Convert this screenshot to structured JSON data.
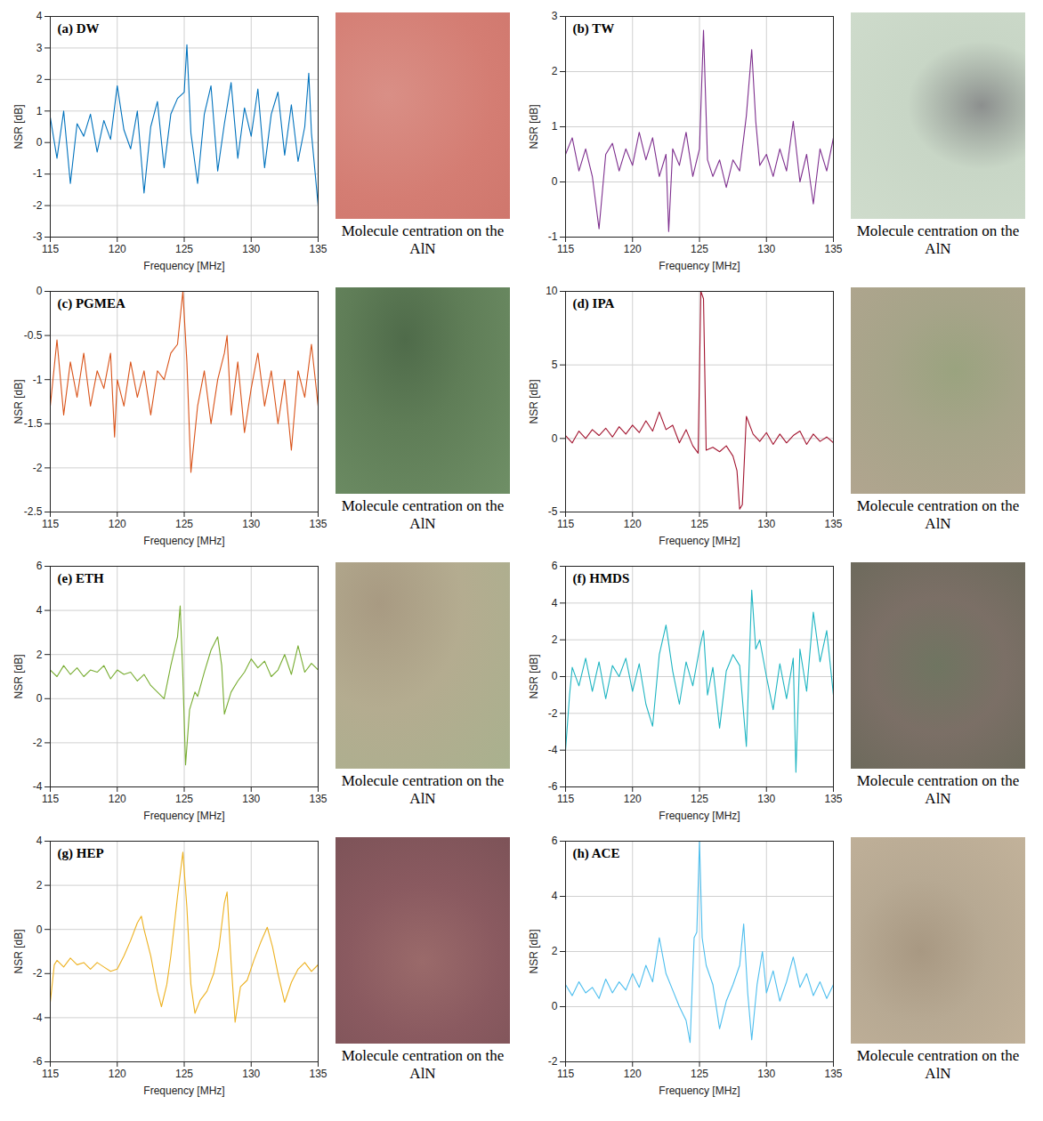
{
  "chart_data": [
    {
      "type": "line",
      "title": "(a) DW",
      "x_label": "Frequency [MHz]",
      "y_label": "NSR [dB]",
      "caption": "Molecule centration on the AlN",
      "x": [
        115,
        115.5,
        116,
        116.5,
        117,
        117.5,
        118,
        118.5,
        119,
        119.5,
        120,
        120.5,
        121,
        121.5,
        122,
        122.5,
        123,
        123.5,
        124,
        124.5,
        125,
        125.2,
        125.5,
        126,
        126.5,
        127,
        127.5,
        128,
        128.5,
        129,
        129.5,
        130,
        130.5,
        131,
        131.5,
        132,
        132.5,
        133,
        133.5,
        134,
        134.3,
        134.5,
        135
      ],
      "values": [
        0.8,
        -0.5,
        1.0,
        -1.3,
        0.6,
        0.2,
        0.9,
        -0.3,
        0.7,
        0.1,
        1.8,
        0.4,
        -0.2,
        1.0,
        -1.6,
        0.5,
        1.3,
        -0.8,
        0.9,
        1.4,
        1.6,
        3.1,
        0.3,
        -1.3,
        0.9,
        1.8,
        -0.9,
        0.6,
        1.9,
        -0.5,
        1.1,
        0.2,
        1.7,
        -0.8,
        0.9,
        1.6,
        -0.4,
        1.2,
        -0.6,
        0.5,
        2.2,
        0.3,
        -2.0
      ],
      "color": "#0072BD",
      "xlim": [
        115,
        135
      ],
      "xticks": [
        115,
        120,
        125,
        130,
        135
      ],
      "ylim": [
        -3,
        4
      ],
      "yticks": [
        -3,
        -2,
        -1,
        0,
        1,
        2,
        3,
        4
      ],
      "grid": true
    },
    {
      "type": "line",
      "title": "(b) TW",
      "x_label": "Frequency [MHz]",
      "y_label": "NSR [dB]",
      "caption": "Molecule centration on the AlN",
      "x": [
        115,
        115.5,
        116,
        116.5,
        117,
        117.5,
        118,
        118.5,
        119,
        119.5,
        120,
        120.5,
        121,
        121.5,
        122,
        122.5,
        122.7,
        123,
        123.5,
        124,
        124.5,
        125,
        125.3,
        125.6,
        126,
        126.5,
        127,
        127.5,
        128,
        128.5,
        128.9,
        129.2,
        129.5,
        130,
        130.5,
        131,
        131.5,
        132,
        132.5,
        133,
        133.5,
        134,
        134.5,
        135
      ],
      "values": [
        0.5,
        0.8,
        0.2,
        0.6,
        0.1,
        -0.85,
        0.5,
        0.7,
        0.2,
        0.6,
        0.3,
        0.9,
        0.4,
        0.8,
        0.1,
        0.5,
        -0.9,
        0.6,
        0.3,
        0.9,
        0.1,
        0.6,
        2.75,
        0.4,
        0.1,
        0.4,
        -0.1,
        0.4,
        0.2,
        1.2,
        2.4,
        1.1,
        0.3,
        0.5,
        0.1,
        0.6,
        0.2,
        1.1,
        0.0,
        0.5,
        -0.4,
        0.6,
        0.2,
        0.8
      ],
      "color": "#7E2F8E",
      "xlim": [
        115,
        135
      ],
      "xticks": [
        115,
        120,
        125,
        130,
        135
      ],
      "ylim": [
        -1,
        3
      ],
      "yticks": [
        -1,
        0,
        1,
        2,
        3
      ],
      "grid": true
    },
    {
      "type": "line",
      "title": "(c) PGMEA",
      "x_label": "Frequency [MHz]",
      "y_label": "NSR [dB]",
      "caption": "Molecule centration on the AlN",
      "x": [
        115,
        115.5,
        116,
        116.5,
        117,
        117.5,
        118,
        118.5,
        119,
        119.5,
        119.8,
        120,
        120.5,
        121,
        121.5,
        122,
        122.5,
        123,
        123.5,
        124,
        124.5,
        124.9,
        125.2,
        125.5,
        126,
        126.5,
        127,
        127.5,
        128,
        128.2,
        128.5,
        129,
        129.5,
        130,
        130.5,
        131,
        131.5,
        132,
        132.5,
        133,
        133.5,
        134,
        134.5,
        135
      ],
      "values": [
        -1.3,
        -0.55,
        -1.4,
        -0.8,
        -1.2,
        -0.7,
        -1.3,
        -0.9,
        -1.1,
        -0.7,
        -1.65,
        -1.0,
        -1.3,
        -0.8,
        -1.2,
        -0.9,
        -1.4,
        -0.9,
        -1.0,
        -0.7,
        -0.6,
        0.0,
        -0.8,
        -2.05,
        -1.3,
        -0.9,
        -1.5,
        -1.0,
        -0.7,
        -0.5,
        -1.4,
        -0.8,
        -1.6,
        -1.1,
        -0.7,
        -1.3,
        -0.9,
        -1.5,
        -1.0,
        -1.8,
        -0.9,
        -1.2,
        -0.6,
        -1.3
      ],
      "color": "#D95319",
      "xlim": [
        115,
        135
      ],
      "xticks": [
        115,
        120,
        125,
        130,
        135
      ],
      "ylim": [
        -2.5,
        0
      ],
      "yticks": [
        -2.5,
        -2,
        -1.5,
        -1,
        -0.5,
        0
      ],
      "grid": true
    },
    {
      "type": "line",
      "title": "(d) IPA",
      "x_label": "Frequency [MHz]",
      "y_label": "NSR [dB]",
      "caption": "Molecule centration on the AlN",
      "x": [
        115,
        115.5,
        116,
        116.5,
        117,
        117.5,
        118,
        118.5,
        119,
        119.5,
        120,
        120.5,
        121,
        121.5,
        122,
        122.5,
        123,
        123.5,
        124,
        124.5,
        124.9,
        125.1,
        125.3,
        125.5,
        126,
        126.5,
        127,
        127.5,
        127.8,
        128,
        128.2,
        128.5,
        129,
        129.5,
        130,
        130.5,
        131,
        131.5,
        132,
        132.5,
        133,
        133.5,
        134,
        134.5,
        135
      ],
      "values": [
        0.2,
        -0.3,
        0.5,
        0.0,
        0.6,
        0.2,
        0.7,
        0.1,
        0.8,
        0.3,
        0.9,
        0.4,
        1.2,
        0.5,
        1.8,
        0.6,
        0.9,
        -0.3,
        0.6,
        -0.5,
        -1.0,
        10.0,
        9.5,
        -0.8,
        -0.6,
        -0.9,
        -0.5,
        -1.2,
        -2.2,
        -4.8,
        -4.5,
        1.5,
        0.3,
        -0.2,
        0.4,
        -0.4,
        0.3,
        -0.3,
        0.2,
        0.5,
        -0.4,
        0.3,
        -0.2,
        0.1,
        -0.3
      ],
      "color": "#A2142F",
      "xlim": [
        115,
        135
      ],
      "xticks": [
        115,
        120,
        125,
        130,
        135
      ],
      "ylim": [
        -5,
        10
      ],
      "yticks": [
        -5,
        0,
        5,
        10
      ],
      "grid": true
    },
    {
      "type": "line",
      "title": "(e) ETH",
      "x_label": "Frequency [MHz]",
      "y_label": "NSR [dB]",
      "caption": "Molecule centration on the AlN",
      "x": [
        115,
        115.5,
        116,
        116.5,
        117,
        117.5,
        118,
        118.5,
        119,
        119.5,
        120,
        120.5,
        121,
        121.5,
        122,
        122.5,
        123,
        123.5,
        124,
        124.5,
        124.7,
        124.9,
        125.1,
        125.4,
        125.8,
        126,
        126.5,
        127,
        127.5,
        127.8,
        128,
        128.5,
        129,
        129.5,
        130,
        130.5,
        131,
        131.5,
        132,
        132.5,
        133,
        133.5,
        134,
        134.5,
        135
      ],
      "values": [
        1.3,
        1.0,
        1.5,
        1.1,
        1.4,
        1.0,
        1.3,
        1.2,
        1.5,
        0.9,
        1.3,
        1.1,
        1.2,
        0.8,
        1.1,
        0.6,
        0.3,
        0.0,
        1.5,
        2.8,
        4.2,
        1.0,
        -3.0,
        -0.5,
        0.3,
        0.1,
        1.2,
        2.2,
        2.8,
        1.5,
        -0.7,
        0.3,
        0.8,
        1.2,
        1.8,
        1.4,
        1.7,
        1.0,
        1.3,
        2.0,
        1.1,
        2.4,
        1.2,
        1.6,
        1.3
      ],
      "color": "#77AC30",
      "xlim": [
        115,
        135
      ],
      "xticks": [
        115,
        120,
        125,
        130,
        135
      ],
      "ylim": [
        -4,
        6
      ],
      "yticks": [
        -4,
        -2,
        0,
        2,
        4,
        6
      ],
      "grid": true
    },
    {
      "type": "line",
      "title": "(f) HMDS",
      "x_label": "Frequency [MHz]",
      "y_label": "NSR [dB]",
      "caption": "Molecule centration on the AlN",
      "x": [
        115,
        115.3,
        115.5,
        116,
        116.5,
        117,
        117.5,
        118,
        118.5,
        119,
        119.5,
        120,
        120.5,
        121,
        121.5,
        122,
        122.5,
        123,
        123.5,
        124,
        124.5,
        125,
        125.3,
        125.6,
        126,
        126.5,
        127,
        127.5,
        128,
        128.5,
        128.9,
        129.2,
        129.5,
        130,
        130.5,
        131,
        131.5,
        132,
        132.2,
        132.5,
        133,
        133.5,
        134,
        134.5,
        135
      ],
      "values": [
        -4.0,
        -1.0,
        0.5,
        -0.5,
        1.0,
        -0.8,
        0.8,
        -1.2,
        0.6,
        0.0,
        1.0,
        -0.8,
        0.7,
        -1.5,
        -2.7,
        1.2,
        2.8,
        0.3,
        -1.5,
        0.8,
        -0.5,
        1.5,
        2.5,
        -1.0,
        0.5,
        -2.8,
        0.3,
        1.2,
        0.6,
        -3.8,
        4.7,
        1.5,
        2.0,
        0.0,
        -1.8,
        0.7,
        -1.2,
        1.0,
        -5.2,
        1.5,
        -0.8,
        3.5,
        0.8,
        2.5,
        -1.0
      ],
      "color": "#1FB5C2",
      "xlim": [
        115,
        135
      ],
      "xticks": [
        115,
        120,
        125,
        130,
        135
      ],
      "ylim": [
        -6,
        6
      ],
      "yticks": [
        -6,
        -4,
        -2,
        0,
        2,
        4,
        6
      ],
      "grid": true
    },
    {
      "type": "line",
      "title": "(g) HEP",
      "x_label": "Frequency [MHz]",
      "y_label": "NSR [dB]",
      "caption": "Molecule centration on the AlN",
      "x": [
        115,
        115.3,
        115.5,
        116,
        116.5,
        117,
        117.5,
        118,
        118.5,
        119,
        119.5,
        120,
        120.5,
        121,
        121.5,
        121.8,
        122,
        122.5,
        123,
        123.3,
        123.7,
        124,
        124.5,
        124.9,
        125.2,
        125.5,
        125.8,
        126.2,
        126.7,
        127.2,
        127.6,
        128,
        128.2,
        128.5,
        128.8,
        129.2,
        129.7,
        130.2,
        130.7,
        131.2,
        131.6,
        132,
        132.5,
        133,
        133.5,
        134,
        134.5,
        135
      ],
      "values": [
        -3.3,
        -1.6,
        -1.4,
        -1.7,
        -1.3,
        -1.6,
        -1.5,
        -1.8,
        -1.5,
        -1.7,
        -1.9,
        -1.8,
        -1.2,
        -0.5,
        0.3,
        0.6,
        0.0,
        -1.2,
        -2.8,
        -3.5,
        -2.5,
        -1.2,
        1.5,
        3.5,
        1.0,
        -2.5,
        -3.8,
        -3.2,
        -2.8,
        -2.0,
        -0.8,
        1.2,
        1.7,
        -1.5,
        -4.2,
        -2.6,
        -2.3,
        -1.4,
        -0.6,
        0.1,
        -0.8,
        -2.0,
        -3.3,
        -2.4,
        -1.8,
        -1.5,
        -1.9,
        -1.6
      ],
      "color": "#EDB120",
      "xlim": [
        115,
        135
      ],
      "xticks": [
        115,
        120,
        125,
        130,
        135
      ],
      "ylim": [
        -6,
        4
      ],
      "yticks": [
        -6,
        -4,
        -2,
        0,
        2,
        4
      ],
      "grid": true
    },
    {
      "type": "line",
      "title": "(h) ACE",
      "x_label": "Frequency [MHz]",
      "y_label": "NSR [dB]",
      "caption": "Molecule centration on the AlN",
      "x": [
        115,
        115.5,
        116,
        116.5,
        117,
        117.5,
        118,
        118.5,
        119,
        119.5,
        120,
        120.5,
        121,
        121.5,
        122,
        122.5,
        123,
        123.5,
        124,
        124.3,
        124.6,
        124.8,
        125,
        125.2,
        125.5,
        126,
        126.5,
        127,
        127.5,
        128,
        128.3,
        128.6,
        128.9,
        129.3,
        129.7,
        130,
        130.5,
        131,
        131.5,
        132,
        132.5,
        133,
        133.5,
        134,
        134.5,
        135
      ],
      "values": [
        0.8,
        0.4,
        0.9,
        0.5,
        0.7,
        0.3,
        1.0,
        0.5,
        0.9,
        0.6,
        1.2,
        0.7,
        1.5,
        0.9,
        2.5,
        1.2,
        0.6,
        0.0,
        -0.5,
        -1.3,
        2.5,
        2.7,
        6.0,
        2.5,
        1.5,
        0.8,
        -0.8,
        0.2,
        0.8,
        1.5,
        3.0,
        0.5,
        -1.2,
        0.8,
        2.0,
        0.5,
        1.3,
        0.2,
        0.9,
        1.8,
        0.7,
        1.2,
        0.4,
        0.9,
        0.3,
        0.8
      ],
      "color": "#4DBEEE",
      "xlim": [
        115,
        135
      ],
      "xticks": [
        115,
        120,
        125,
        130,
        135
      ],
      "ylim": [
        -2,
        6
      ],
      "yticks": [
        -2,
        0,
        2,
        4,
        6
      ],
      "grid": true
    }
  ]
}
